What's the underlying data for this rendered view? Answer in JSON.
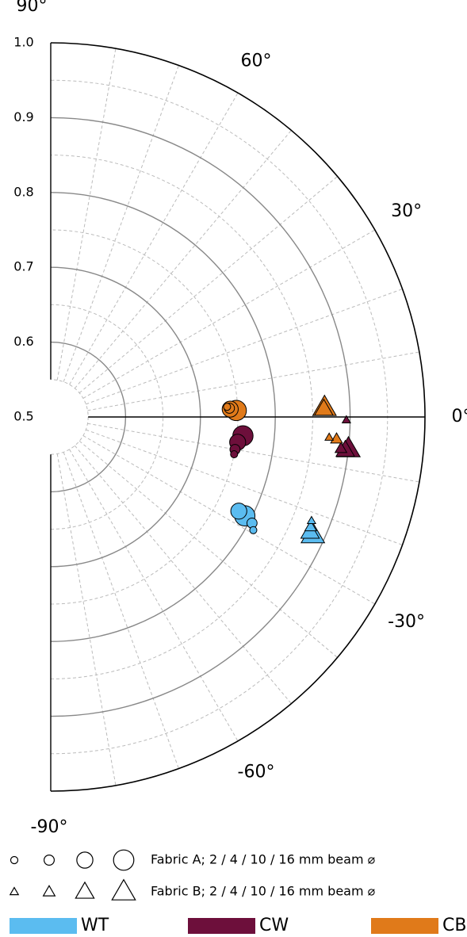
{
  "chart_data": {
    "type": "polar",
    "rlim": [
      0.5,
      1
    ],
    "rticks": [
      0.5,
      0.6,
      0.7,
      0.8,
      0.9,
      {
        "value": 1,
        "label": "1.0"
      }
    ],
    "thetalim": [
      -90,
      90
    ],
    "thetaticks": [
      {
        "value": -90,
        "label": "-90°"
      },
      {
        "value": -60,
        "label": "-60°"
      },
      {
        "value": -30,
        "label": "-30°"
      },
      {
        "value": 0,
        "label": "0°"
      },
      {
        "value": 30,
        "label": "30°"
      },
      {
        "value": 60,
        "label": "60°"
      },
      {
        "value": 90,
        "label": "90°"
      }
    ],
    "grid": true,
    "beam_sizes": [
      2,
      4,
      10,
      16
    ],
    "fabrics": [
      {
        "label": "Fabric A; 2 / 4 / 10 / 16 mm beam ⌀",
        "marker": "circle"
      },
      {
        "label": "Fabric B; 2 / 4 / 10 / 16 mm beam ⌀",
        "marker": "triangle"
      }
    ],
    "groups": [
      {
        "name": "WT",
        "color": "#5bbcf0",
        "points": [
          {
            "theta": [
              -29.2,
              -27.8,
              -26.6,
              -27.0
            ],
            "r": [
              0.81,
              0.804,
              0.781,
              0.791
            ]
          },
          {
            "theta": [
              -21.7,
              -22.9,
              -23.9,
              -24.2
            ],
            "r": [
              0.875,
              0.877,
              0.879,
              0.884
            ]
          }
        ]
      },
      {
        "name": "CW",
        "color": "#6d0f3b",
        "points": [
          {
            "theta": [
              -11.5,
              -10.0,
              -7.7,
              -5.6
            ],
            "r": [
              0.75,
              0.75,
              0.752,
              0.758
            ]
          },
          {
            "theta": [
              -0.6,
              -6.2,
              -6.4,
              -6.1
            ],
            "r": [
              0.895,
              0.89,
              0.896,
              0.9
            ]
          }
        ]
      },
      {
        "name": "CB",
        "color": "#e07a1a",
        "points": [
          {
            "theta": [
              3.3,
              2.8,
              2.5,
              2.0
            ],
            "r": [
              0.736,
              0.739,
              0.74,
              0.748
            ]
          },
          {
            "theta": [
              -4.2,
              -4.4,
              1.7,
              2.0
            ],
            "r": [
              0.873,
              0.883,
              0.865,
              0.866
            ]
          }
        ]
      }
    ]
  }
}
